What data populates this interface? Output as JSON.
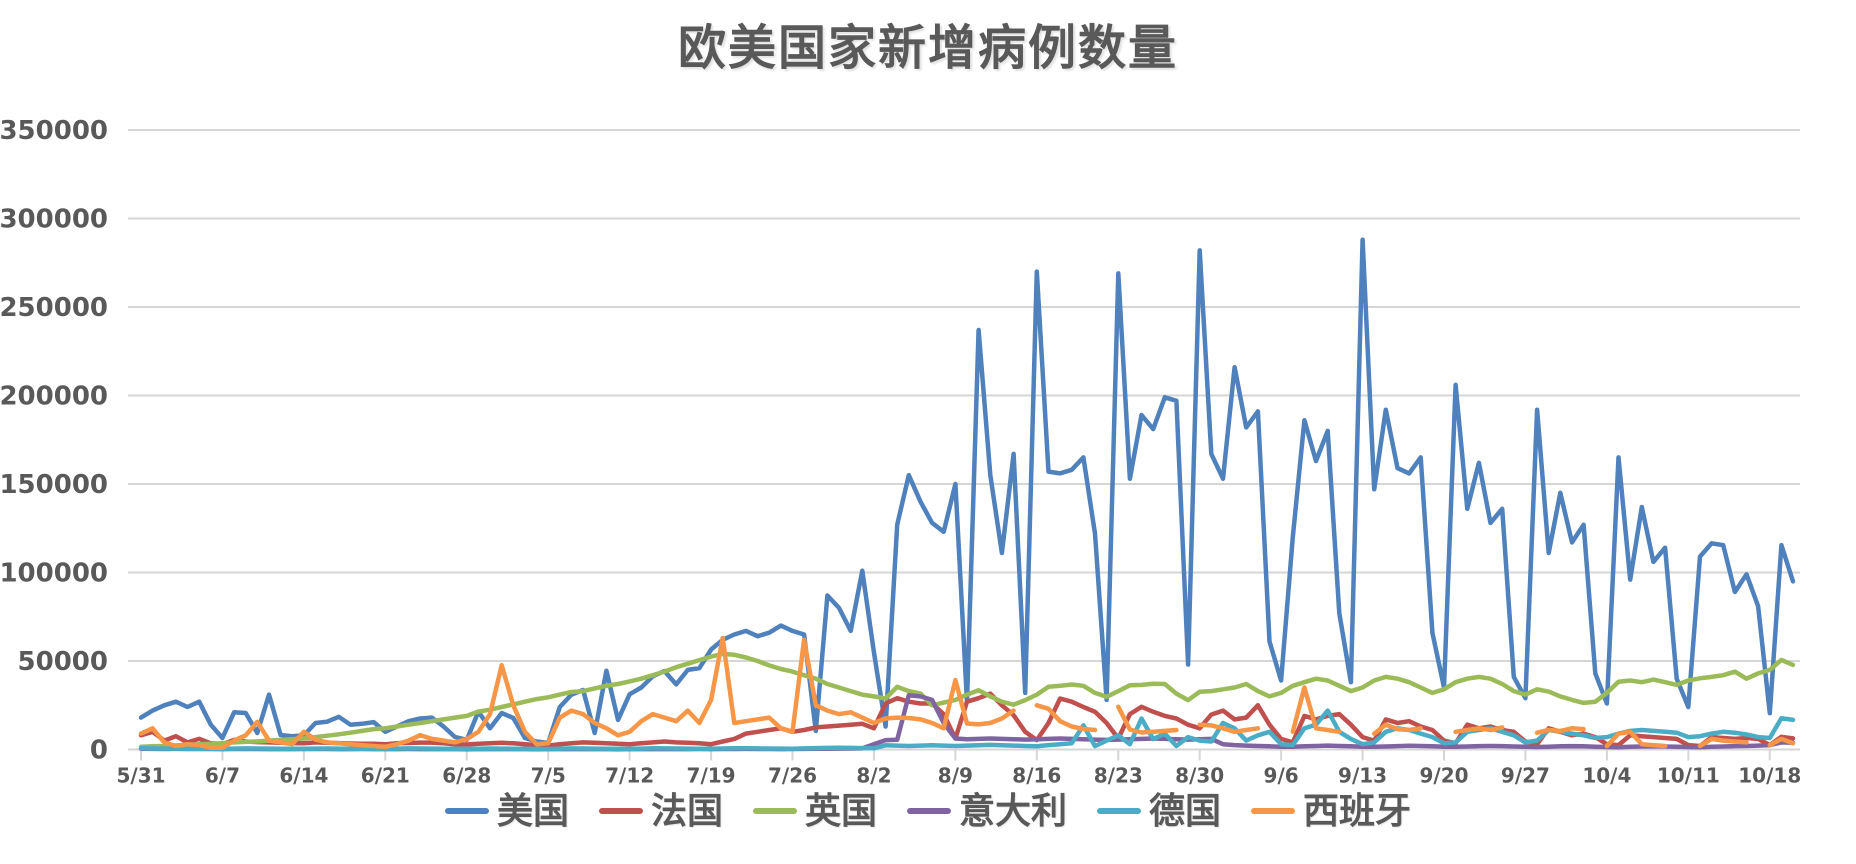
{
  "title": "欧美国家新增病例数量",
  "colors": {
    "background": "#ffffff",
    "gridline": "#d6d6d6",
    "axis_text": "#595959"
  },
  "chart_data": {
    "type": "line",
    "title": "欧美国家新增病例数量",
    "xlabel": "",
    "ylabel": "",
    "ylim": [
      0,
      350000
    ],
    "y_tick_step": 50000,
    "y_tick_labels": [
      "0",
      "50000",
      "100000",
      "150000",
      "200000",
      "250000",
      "300000",
      "350000"
    ],
    "x_tick_labels": [
      "5/31",
      "6/7",
      "6/14",
      "6/21",
      "6/28",
      "7/5",
      "7/12",
      "7/19",
      "7/26",
      "8/2",
      "8/9",
      "8/16",
      "8/23",
      "8/30",
      "9/6",
      "9/13",
      "9/20",
      "9/27",
      "10/4",
      "10/11",
      "10/18"
    ],
    "x_days_per_point": 1,
    "x_points_per_tick": 7,
    "grid": "horizontal",
    "legend_position": "bottom",
    "series": [
      {
        "name": "美国",
        "color": "#4F81BD",
        "values": [
          18000,
          22000,
          25000,
          27000,
          24000,
          27000,
          14000,
          6500,
          21000,
          20600,
          9300,
          31000,
          8200,
          7500,
          8000,
          15000,
          15700,
          18500,
          14000,
          14500,
          15500,
          10000,
          13000,
          16000,
          17500,
          18000,
          13000,
          7000,
          5500,
          21400,
          12000,
          20600,
          17800,
          6500,
          4500,
          3700,
          24000,
          31000,
          33600,
          9300,
          44500,
          16700,
          31200,
          35000,
          41400,
          44300,
          36800,
          45000,
          46000,
          56500,
          62000,
          65000,
          67000,
          64000,
          66000,
          70000,
          67000,
          65000,
          10500,
          87000,
          80000,
          67000,
          101000,
          55000,
          13000,
          127000,
          155000,
          140000,
          128000,
          123000,
          150000,
          27000,
          237000,
          155000,
          111000,
          167000,
          32000,
          270000,
          157000,
          156000,
          158000,
          165000,
          122000,
          28000,
          269000,
          153000,
          189000,
          181000,
          199000,
          197000,
          48000,
          282000,
          167000,
          153000,
          216000,
          182000,
          191000,
          61000,
          39000,
          120000,
          186000,
          163000,
          180000,
          77000,
          38000,
          288000,
          147000,
          192000,
          159000,
          156000,
          165000,
          66000,
          35000,
          206000,
          136000,
          162000,
          128000,
          136000,
          41000,
          29000,
          192000,
          111000,
          145000,
          117000,
          127000,
          43000,
          26000,
          165000,
          96000,
          137000,
          106000,
          114000,
          40000,
          24000,
          109000,
          116500,
          115500,
          89000,
          99000,
          81000,
          20500,
          115500,
          95000
        ]
      },
      {
        "name": "法国",
        "color": "#C0504D",
        "values": [
          8000,
          10000,
          5000,
          7500,
          4000,
          6000,
          3500,
          3000,
          5500,
          4500,
          4200,
          4000,
          3800,
          3600,
          3500,
          4000,
          3800,
          3600,
          3400,
          3300,
          3200,
          3000,
          3500,
          3700,
          3900,
          3900,
          3500,
          3000,
          2800,
          3200,
          3500,
          3800,
          3500,
          3000,
          2500,
          2200,
          3000,
          3500,
          4000,
          3800,
          3500,
          3200,
          3000,
          3500,
          4000,
          4500,
          4000,
          3800,
          3500,
          3000,
          4500,
          6000,
          9000,
          10000,
          11000,
          12000,
          10000,
          11000,
          12500,
          13000,
          13500,
          14000,
          14500,
          12000,
          26000,
          29000,
          27000,
          26000,
          26000,
          20000,
          6200,
          27000,
          29000,
          31600,
          25000,
          19400,
          10000,
          5300,
          15000,
          28800,
          27000,
          24000,
          21300,
          15000,
          6200,
          20000,
          24100,
          21300,
          19000,
          17500,
          14000,
          12000,
          19700,
          22000,
          17000,
          18000,
          25000,
          14000,
          6000,
          4000,
          19000,
          17000,
          19000,
          20000,
          14000,
          7000,
          5000,
          17000,
          15000,
          16000,
          13000,
          11000,
          5000,
          3500,
          14000,
          12000,
          13000,
          11000,
          10000,
          4500,
          3000,
          12000,
          10000,
          8000,
          9000,
          7000,
          3000,
          2500,
          8000,
          7500,
          7000,
          6500,
          6000,
          2500,
          2000,
          7000,
          6500,
          6000,
          6500,
          6000,
          2500,
          7200,
          6300
        ]
      },
      {
        "name": "英国",
        "color": "#9BBB59",
        "values": [
          1500,
          1800,
          2000,
          2300,
          2600,
          3000,
          3300,
          3600,
          4000,
          4300,
          4600,
          5000,
          5400,
          5800,
          6200,
          7000,
          7800,
          8600,
          9500,
          10500,
          11500,
          12000,
          13000,
          14000,
          15000,
          16000,
          17000,
          18000,
          19000,
          21400,
          22500,
          24000,
          25500,
          27000,
          28500,
          29500,
          31000,
          32500,
          33000,
          34500,
          36000,
          37000,
          38500,
          40000,
          42000,
          44000,
          46500,
          48500,
          50500,
          52500,
          54000,
          53500,
          52000,
          50000,
          47500,
          45500,
          44000,
          42000,
          40000,
          37000,
          35000,
          33000,
          31000,
          30000,
          28800,
          35400,
          33000,
          31600,
          25000,
          26500,
          28000,
          31000,
          33500,
          30000,
          27000,
          25300,
          27900,
          31000,
          35400,
          36000,
          36700,
          36000,
          32000,
          29800,
          33000,
          36300,
          36500,
          37200,
          37000,
          31600,
          27900,
          32600,
          33000,
          34000,
          35000,
          37000,
          33000,
          30000,
          32000,
          36000,
          38000,
          40000,
          39000,
          36000,
          33000,
          35000,
          39000,
          41000,
          40000,
          38000,
          35000,
          32000,
          34000,
          38000,
          40000,
          41000,
          40000,
          37000,
          33000,
          31000,
          34000,
          32700,
          30000,
          28000,
          26300,
          27000,
          32000,
          38300,
          39000,
          38000,
          39500,
          38000,
          36500,
          39000,
          40200,
          41000,
          42000,
          44000,
          40000,
          43000,
          45000,
          50600,
          47800
        ]
      },
      {
        "name": "意大利",
        "color": "#8064A2",
        "values": [
          400,
          350,
          300,
          320,
          280,
          300,
          270,
          250,
          280,
          300,
          280,
          250,
          230,
          250,
          300,
          280,
          260,
          240,
          250,
          260,
          250,
          220,
          240,
          260,
          250,
          230,
          220,
          200,
          180,
          200,
          220,
          240,
          230,
          210,
          190,
          200,
          220,
          240,
          230,
          210,
          200,
          190,
          200,
          230,
          250,
          240,
          220,
          250,
          280,
          250,
          280,
          300,
          320,
          300,
          280,
          250,
          300,
          350,
          400,
          450,
          500,
          550,
          600,
          3000,
          5300,
          5500,
          30700,
          30000,
          28000,
          15000,
          6200,
          5800,
          6000,
          6200,
          6000,
          5800,
          5600,
          5800,
          6000,
          6200,
          6000,
          5800,
          5600,
          5400,
          5600,
          5800,
          6000,
          6200,
          6000,
          5800,
          5600,
          5800,
          6000,
          3000,
          2500,
          2200,
          2000,
          1800,
          1500,
          1600,
          1800,
          2000,
          2200,
          2000,
          1800,
          1600,
          1500,
          1700,
          1900,
          2100,
          2000,
          1800,
          1600,
          1500,
          1700,
          1900,
          2000,
          1900,
          1700,
          1500,
          1400,
          1600,
          1800,
          1900,
          1800,
          1600,
          1400,
          1300,
          1500,
          1700,
          1800,
          1700,
          1600,
          1400,
          1300,
          1500,
          1700,
          1900,
          2000,
          2200,
          2500,
          4000,
          3800
        ]
      },
      {
        "name": "德国",
        "color": "#4BACC6",
        "values": [
          700,
          600,
          500,
          550,
          450,
          500,
          400,
          350,
          500,
          600,
          550,
          500,
          450,
          400,
          450,
          500,
          550,
          500,
          450,
          400,
          350,
          400,
          500,
          600,
          550,
          500,
          450,
          400,
          350,
          450,
          550,
          500,
          450,
          400,
          350,
          300,
          450,
          600,
          550,
          500,
          450,
          400,
          350,
          500,
          650,
          600,
          550,
          500,
          450,
          400,
          550,
          700,
          650,
          600,
          550,
          500,
          450,
          600,
          800,
          900,
          1000,
          900,
          800,
          700,
          2400,
          2200,
          2000,
          2200,
          2400,
          2200,
          2000,
          2200,
          2400,
          2600,
          2400,
          2200,
          2000,
          1800,
          2500,
          3000,
          3500,
          13700,
          1900,
          5000,
          8000,
          3000,
          17500,
          5900,
          9000,
          2000,
          7000,
          5000,
          4500,
          15000,
          12000,
          5000,
          8000,
          10000,
          3000,
          2500,
          12000,
          14000,
          22000,
          10000,
          6000,
          3000,
          4000,
          10000,
          12000,
          11000,
          9000,
          7000,
          3500,
          4000,
          10000,
          11000,
          12000,
          10000,
          8000,
          4000,
          5000,
          11000,
          10000,
          9000,
          8000,
          6500,
          7000,
          9000,
          10500,
          11000,
          10500,
          10000,
          9500,
          7000,
          7500,
          9000,
          10000,
          9500,
          8500,
          7000,
          6500,
          17700,
          16700
        ]
      },
      {
        "name": "西班牙",
        "color": "#F79646",
        "values": [
          9000,
          12000,
          4000,
          2000,
          3000,
          2500,
          1000,
          1000,
          5000,
          8000,
          15600,
          5000,
          4000,
          3000,
          10000,
          5600,
          4000,
          3500,
          3000,
          2500,
          2000,
          1500,
          3000,
          5000,
          8100,
          6000,
          5000,
          4000,
          6000,
          10000,
          20000,
          47600,
          25000,
          10000,
          3000,
          3500,
          18000,
          22000,
          20000,
          15000,
          12000,
          8000,
          10000,
          16000,
          20000,
          18000,
          16000,
          22000,
          15000,
          28000,
          63000,
          15000,
          16000,
          17000,
          18000,
          12000,
          10000,
          62000,
          25000,
          22000,
          20000,
          21000,
          18000,
          15000,
          17500,
          18000,
          17800,
          17000,
          15000,
          12000,
          39200,
          14700,
          14200,
          15000,
          17500,
          22000,
          null,
          25000,
          23000,
          16000,
          13000,
          11600,
          11000,
          null,
          24100,
          11300,
          9600,
          10000,
          10500,
          11000,
          null,
          14000,
          13600,
          12000,
          10000,
          11000,
          12000,
          null,
          null,
          10000,
          35000,
          12000,
          11000,
          10000,
          null,
          null,
          9000,
          14000,
          11500,
          11000,
          12000,
          null,
          null,
          10000,
          11000,
          12000,
          11000,
          12500,
          null,
          null,
          9500,
          11000,
          10500,
          12000,
          11500,
          null,
          2000,
          9000,
          10000,
          3000,
          2500,
          2000,
          null,
          null,
          2000,
          6000,
          5000,
          4500,
          4000,
          null,
          2500,
          6000,
          3500
        ]
      }
    ]
  }
}
